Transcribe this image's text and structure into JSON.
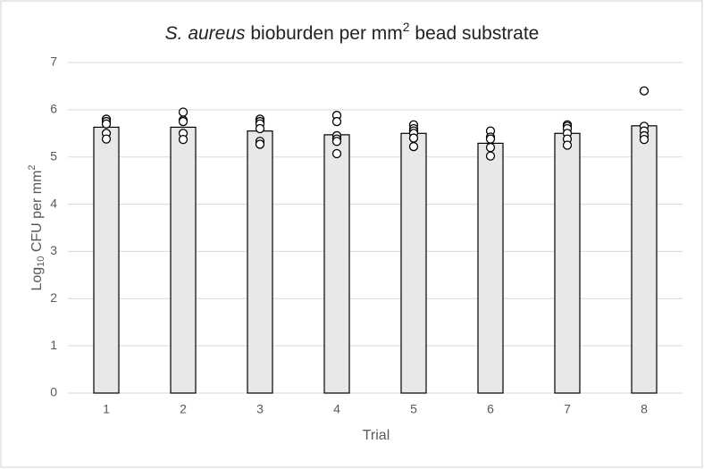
{
  "chart_data": {
    "type": "bar",
    "title": [
      "S. aureus",
      " bioburden per mm",
      "2",
      " bead substrate"
    ],
    "x_label": "Trial",
    "y_label": [
      "Log",
      "10",
      " CFU per mm",
      "2"
    ],
    "categories": [
      "1",
      "2",
      "3",
      "4",
      "5",
      "6",
      "7",
      "8"
    ],
    "values": [
      5.63,
      5.63,
      5.55,
      5.47,
      5.5,
      5.29,
      5.5,
      5.66
    ],
    "points": [
      [
        5.8,
        5.75,
        5.7,
        5.5,
        5.38
      ],
      [
        5.95,
        5.78,
        5.75,
        5.5,
        5.37
      ],
      [
        5.8,
        5.75,
        5.7,
        5.6,
        5.33,
        5.27
      ],
      [
        5.88,
        5.75,
        5.45,
        5.38,
        5.33,
        5.07
      ],
      [
        5.68,
        5.6,
        5.55,
        5.5,
        5.4,
        5.22
      ],
      [
        5.55,
        5.42,
        5.38,
        5.2,
        5.02
      ],
      [
        5.68,
        5.65,
        5.6,
        5.5,
        5.38,
        5.25
      ],
      [
        6.4,
        5.65,
        5.55,
        5.45,
        5.37
      ]
    ],
    "color": "#e8e8e8",
    "ylim": [
      0,
      7
    ],
    "yticks": [
      0,
      1,
      2,
      3,
      4,
      5,
      6,
      7
    ],
    "grid": true
  }
}
